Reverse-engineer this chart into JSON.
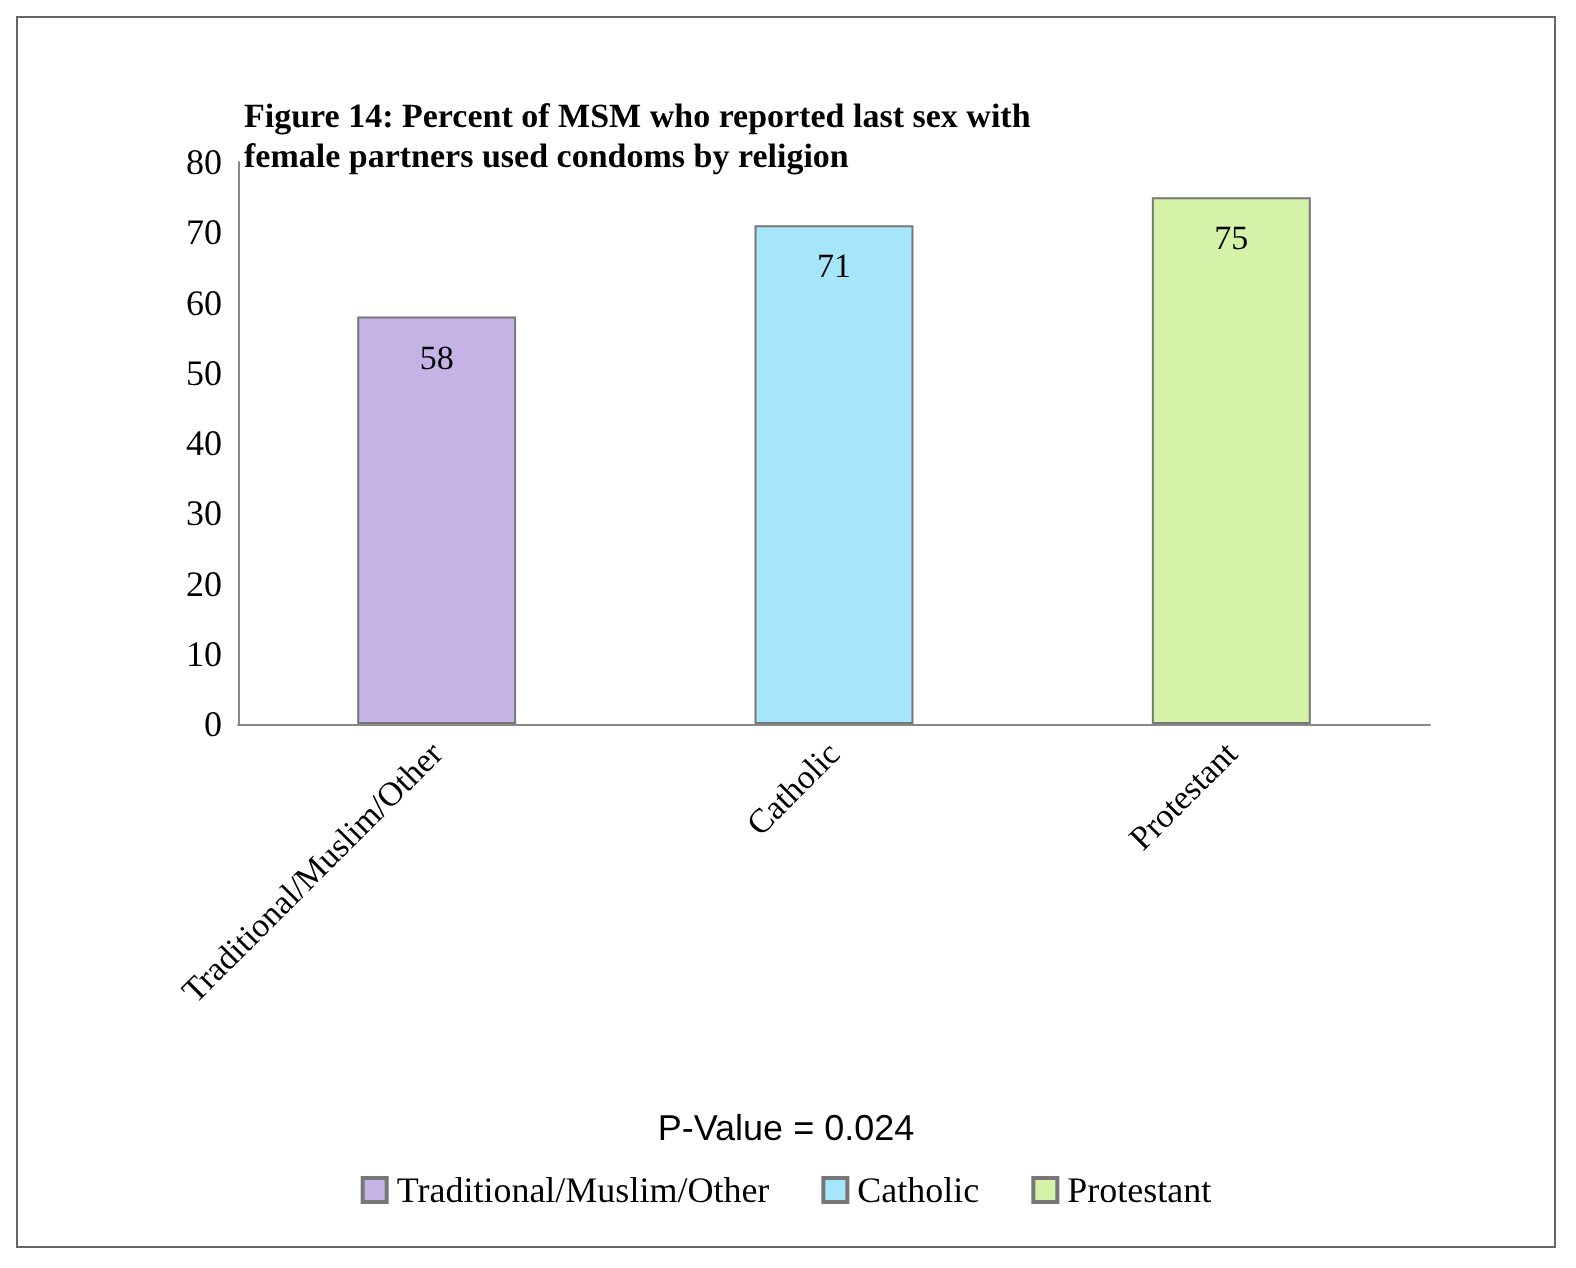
{
  "chart_data": {
    "type": "bar",
    "title": "Figure 14: Percent of MSM who reported last sex with\nfemale partners used condoms by religion",
    "categories": [
      "Traditional/Muslim/Other",
      "Catholic",
      "Protestant"
    ],
    "series": [
      {
        "name": "Traditional/Muslim/Other",
        "color": "#c6b3e6",
        "values": [
          58,
          null,
          null
        ]
      },
      {
        "name": "Catholic",
        "color": "#a6e6fa",
        "values": [
          null,
          71,
          null
        ]
      },
      {
        "name": "Protestant",
        "color": "#d4f2a8",
        "values": [
          null,
          null,
          75
        ]
      }
    ],
    "stacked": true,
    "ylim": [
      0,
      80
    ],
    "yticks": [
      0,
      10,
      20,
      30,
      40,
      50,
      60,
      70,
      80
    ],
    "grid": false,
    "data_labels": true,
    "legend": "bottom",
    "annotations": [
      "P-Value = 0.024"
    ]
  }
}
